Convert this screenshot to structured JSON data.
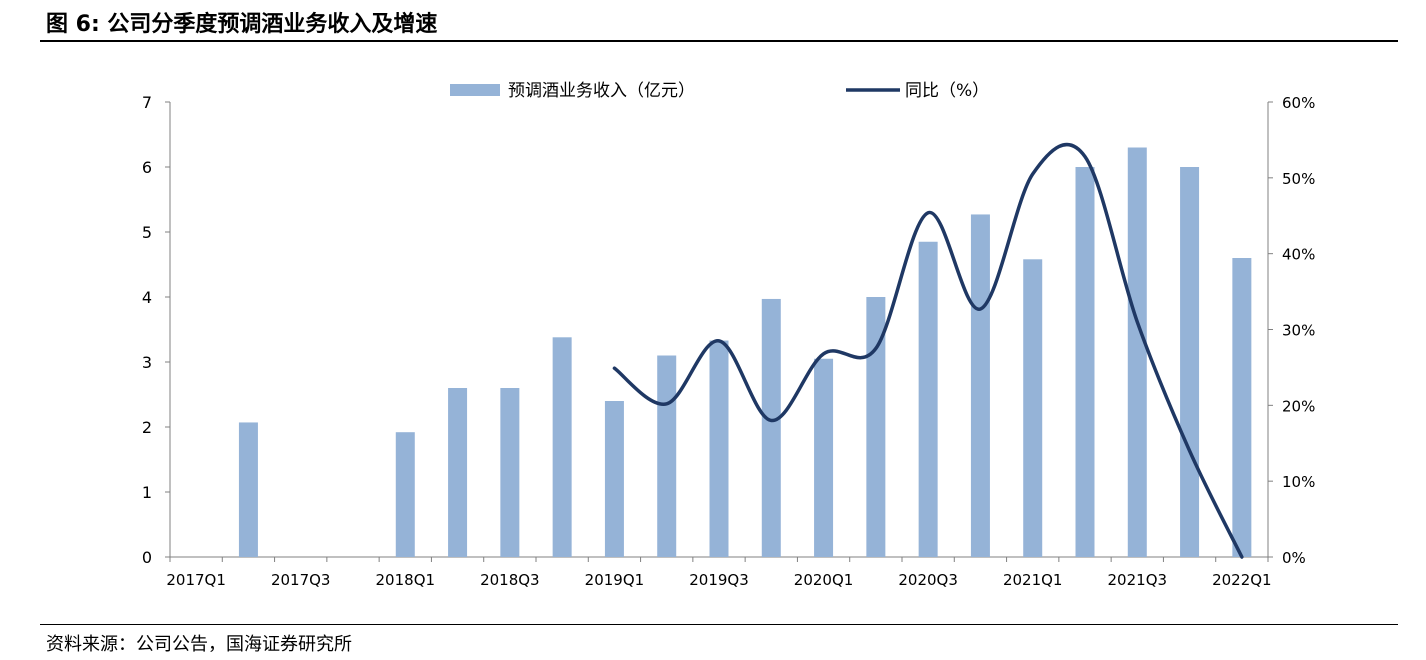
{
  "title": "图 6: 公司分季度预调酒业务收入及增速",
  "source": "资料来源：公司公告，国海证券研究所",
  "chart_data": {
    "type": "bar+line",
    "categories": [
      "2017Q1",
      "2017Q2",
      "2017Q3",
      "2017Q4",
      "2018Q1",
      "2018Q2",
      "2018Q3",
      "2018Q4",
      "2019Q1",
      "2019Q2",
      "2019Q3",
      "2019Q4",
      "2020Q1",
      "2020Q2",
      "2020Q3",
      "2020Q4",
      "2021Q1",
      "2021Q2",
      "2021Q3",
      "2021Q4",
      "2022Q1"
    ],
    "x_tick_labels": [
      "2017Q1",
      "2017Q3",
      "2018Q1",
      "2018Q3",
      "2019Q1",
      "2019Q3",
      "2020Q1",
      "2020Q3",
      "2021Q1",
      "2021Q3",
      "2022Q1"
    ],
    "series": [
      {
        "name": "预调酒业务收入（亿元）",
        "type": "bar",
        "axis": "left",
        "color": "#95B3D7",
        "values": [
          null,
          2.07,
          null,
          null,
          1.92,
          2.6,
          2.6,
          3.38,
          2.4,
          3.1,
          3.33,
          3.97,
          3.05,
          4.0,
          4.85,
          5.27,
          4.58,
          6.0,
          6.3,
          6.0,
          4.6
        ]
      },
      {
        "name": "同比（%）",
        "type": "line",
        "axis": "right",
        "color": "#1F3864",
        "values": [
          null,
          null,
          null,
          null,
          null,
          null,
          null,
          null,
          24.9,
          20.2,
          28.5,
          18.0,
          26.8,
          27.5,
          45.4,
          32.7,
          50.5,
          52.8,
          31.0,
          14.0,
          0.0
        ]
      }
    ],
    "y_left": {
      "min": 0,
      "max": 7,
      "ticks": [
        "0",
        "1",
        "2",
        "3",
        "4",
        "5",
        "6",
        "7"
      ]
    },
    "y_right": {
      "min": 0,
      "max": 60,
      "ticks": [
        "0%",
        "10%",
        "20%",
        "30%",
        "40%",
        "50%",
        "60%"
      ]
    },
    "grid": false,
    "legend": "top"
  }
}
